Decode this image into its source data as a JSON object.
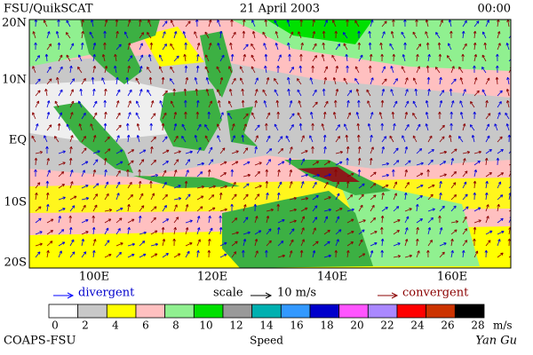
{
  "header": {
    "source": "FSU/QuikSCAT",
    "date": "21 April 2003",
    "time": "00:00"
  },
  "map": {
    "lat_labels": [
      "20N",
      "10N",
      "EQ",
      "10S",
      "20S"
    ],
    "lon_labels": [
      "100E",
      "120E",
      "140E",
      "160E"
    ]
  },
  "legend": {
    "divergent": "divergent",
    "scale": "scale",
    "scale_value": "10 m/s",
    "convergent": "convergent"
  },
  "colorbar": {
    "ticks": [
      "0",
      "2",
      "4",
      "6",
      "8",
      "10",
      "12",
      "14",
      "16",
      "18",
      "20",
      "22",
      "24",
      "26",
      "28"
    ],
    "unit": "m/s",
    "label": "Speed",
    "colors": [
      "#ffffff",
      "#c8c8c8",
      "#ffff00",
      "#ffc0c0",
      "#90f090",
      "#00e000",
      "#999999",
      "#00b0b0",
      "#3399ff",
      "#0000cc",
      "#ff55ff",
      "#aa88ff",
      "#ff0000",
      "#cc3300",
      "#000000"
    ]
  },
  "footer": {
    "org": "COAPS-FSU",
    "author": "Yan Gu"
  }
}
